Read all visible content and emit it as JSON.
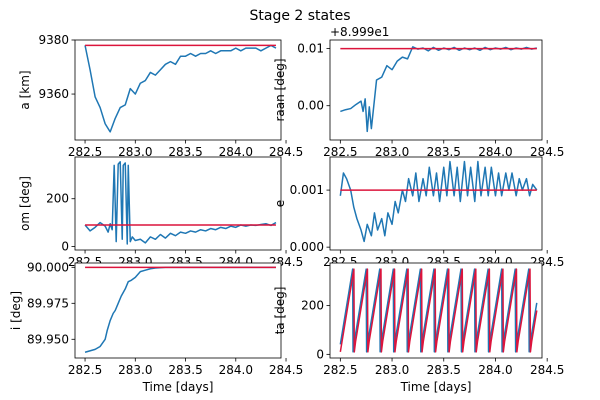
{
  "figure": {
    "title": "Stage 2 states"
  },
  "colors": {
    "simulated": "#1f77b4",
    "target": "#dc143c"
  },
  "chart_data": [
    {
      "type": "line",
      "id": "a",
      "ylabel": "a [km]",
      "xlabel": "",
      "xlim": [
        282.4,
        284.45
      ],
      "ylim": [
        9343,
        9380
      ],
      "xticks": [
        282.5,
        283.0,
        283.5,
        284.0,
        284.5
      ],
      "xtick_labels": [
        "282.5",
        "283.0",
        "283.5",
        "284.0",
        "284.5"
      ],
      "yticks": [
        9360,
        9380
      ],
      "ytick_labels": [
        "9360",
        "9380"
      ],
      "offset_text": "",
      "series": [
        {
          "role": "simulated",
          "x": [
            282.5,
            282.55,
            282.6,
            282.65,
            282.7,
            282.75,
            282.8,
            282.85,
            282.9,
            282.95,
            283.0,
            283.05,
            283.1,
            283.15,
            283.2,
            283.25,
            283.3,
            283.35,
            283.4,
            283.45,
            283.5,
            283.55,
            283.6,
            283.65,
            283.7,
            283.75,
            283.8,
            283.85,
            283.9,
            283.95,
            284.0,
            284.05,
            284.1,
            284.15,
            284.2,
            284.25,
            284.3,
            284.35,
            284.4
          ],
          "y": [
            9378,
            9369,
            9359,
            9355,
            9349,
            9346,
            9351,
            9355,
            9356,
            9362,
            9360,
            9364,
            9365,
            9368,
            9367,
            9369,
            9371,
            9372,
            9371,
            9374,
            9374,
            9375,
            9374,
            9375,
            9375,
            9376,
            9375,
            9376,
            9376,
            9376,
            9377,
            9376,
            9377,
            9377,
            9377,
            9376,
            9377,
            9378,
            9377
          ]
        },
        {
          "role": "target",
          "x": [
            282.5,
            284.4
          ],
          "y": [
            9378,
            9378
          ]
        }
      ]
    },
    {
      "type": "line",
      "id": "raan",
      "ylabel": "raan [deg]",
      "xlabel": "",
      "xlim": [
        282.4,
        284.45
      ],
      "ylim": [
        -0.006,
        0.0115
      ],
      "xticks": [
        282.5,
        283.0,
        283.5,
        284.0,
        284.5
      ],
      "xtick_labels": [
        "282.5",
        "283.0",
        "283.5",
        "284.0",
        "284.5"
      ],
      "yticks": [
        0.0,
        0.01
      ],
      "ytick_labels": [
        "0.00",
        "0.01"
      ],
      "offset_text": "+8.999e1",
      "series": [
        {
          "role": "simulated",
          "x": [
            282.5,
            282.55,
            282.6,
            282.65,
            282.7,
            282.72,
            282.74,
            282.76,
            282.78,
            282.8,
            282.85,
            282.9,
            282.95,
            283.0,
            283.05,
            283.1,
            283.15,
            283.2,
            283.25,
            283.3,
            283.35,
            283.4,
            283.45,
            283.5,
            283.55,
            283.6,
            283.65,
            283.7,
            283.75,
            283.8,
            283.85,
            283.9,
            283.95,
            284.0,
            284.05,
            284.1,
            284.15,
            284.2,
            284.25,
            284.3,
            284.35,
            284.4
          ],
          "y": [
            -0.001,
            -0.0007,
            -0.0005,
            0.0002,
            0.0008,
            -0.001,
            0.0012,
            -0.0045,
            -0.0002,
            -0.004,
            0.0045,
            0.005,
            0.007,
            0.0063,
            0.0078,
            0.0085,
            0.0082,
            0.0103,
            0.0099,
            0.0101,
            0.0096,
            0.0102,
            0.0097,
            0.0101,
            0.0098,
            0.0102,
            0.0097,
            0.0101,
            0.0098,
            0.0101,
            0.0097,
            0.0102,
            0.0098,
            0.0101,
            0.0099,
            0.0102,
            0.0098,
            0.0101,
            0.0099,
            0.0102,
            0.0099,
            0.0101
          ]
        },
        {
          "role": "target",
          "x": [
            282.5,
            284.4
          ],
          "y": [
            0.01,
            0.01
          ]
        }
      ]
    },
    {
      "type": "line",
      "id": "om",
      "ylabel": "om [deg]",
      "xlabel": "",
      "xlim": [
        282.4,
        284.45
      ],
      "ylim": [
        -15,
        375
      ],
      "xticks": [
        282.5,
        283.0,
        283.5,
        284.0,
        284.5
      ],
      "xtick_labels": [
        "282.5",
        "283.0",
        "283.5",
        "284.0",
        "284.5"
      ],
      "yticks": [
        0,
        200
      ],
      "ytick_labels": [
        "0",
        "200"
      ],
      "offset_text": "",
      "series": [
        {
          "role": "simulated",
          "x": [
            282.5,
            282.55,
            282.6,
            282.65,
            282.7,
            282.73,
            282.75,
            282.77,
            282.79,
            282.81,
            282.83,
            282.85,
            282.87,
            282.88,
            282.9,
            282.92,
            282.93,
            282.95,
            282.97,
            283.0,
            283.05,
            283.1,
            283.15,
            283.2,
            283.25,
            283.3,
            283.35,
            283.4,
            283.45,
            283.5,
            283.55,
            283.6,
            283.65,
            283.7,
            283.75,
            283.8,
            283.85,
            283.9,
            283.95,
            284.0,
            284.05,
            284.1,
            284.15,
            284.2,
            284.25,
            284.3,
            284.35,
            284.4
          ],
          "y": [
            90,
            65,
            80,
            100,
            85,
            60,
            95,
            70,
            340,
            20,
            345,
            355,
            30,
            340,
            350,
            10,
            340,
            20,
            40,
            25,
            30,
            15,
            40,
            30,
            50,
            35,
            55,
            45,
            60,
            55,
            65,
            60,
            70,
            65,
            75,
            70,
            80,
            75,
            85,
            80,
            90,
            85,
            90,
            88,
            92,
            95,
            88,
            100
          ]
        },
        {
          "role": "target",
          "x": [
            282.5,
            284.4
          ],
          "y": [
            90,
            90
          ]
        }
      ]
    },
    {
      "type": "line",
      "id": "e",
      "ylabel": "e",
      "xlabel": "",
      "xlim": [
        282.4,
        284.45
      ],
      "ylim": [
        -5e-05,
        0.00158
      ],
      "xticks": [
        282.5,
        283.0,
        283.5,
        284.0,
        284.5
      ],
      "xtick_labels": [
        "282.5",
        "283.0",
        "283.5",
        "284.0",
        "284.5"
      ],
      "yticks": [
        0.0,
        0.001
      ],
      "ytick_labels": [
        "0.000",
        "0.001"
      ],
      "offset_text": "",
      "series": [
        {
          "role": "simulated",
          "x": [
            282.5,
            282.53,
            282.56,
            282.6,
            282.63,
            282.66,
            282.7,
            282.73,
            282.76,
            282.8,
            282.83,
            282.86,
            282.9,
            282.93,
            282.96,
            283.0,
            283.03,
            283.06,
            283.1,
            283.13,
            283.16,
            283.2,
            283.23,
            283.26,
            283.3,
            283.33,
            283.36,
            283.4,
            283.43,
            283.46,
            283.5,
            283.53,
            283.56,
            283.6,
            283.63,
            283.66,
            283.7,
            283.73,
            283.76,
            283.8,
            283.83,
            283.86,
            283.9,
            283.93,
            283.96,
            284.0,
            284.03,
            284.06,
            284.1,
            284.13,
            284.16,
            284.2,
            284.23,
            284.26,
            284.3,
            284.33,
            284.36,
            284.4
          ],
          "y": [
            0.0009,
            0.0013,
            0.0012,
            0.001,
            0.0007,
            0.0005,
            0.0003,
            0.0001,
            0.0004,
            0.0002,
            0.0006,
            0.0003,
            0.0005,
            0.0002,
            0.0006,
            0.0004,
            0.0008,
            0.0006,
            0.001,
            0.0008,
            0.0012,
            0.0009,
            0.0013,
            0.0008,
            0.0012,
            0.0009,
            0.0014,
            0.0009,
            0.0013,
            0.0008,
            0.0014,
            0.0009,
            0.0015,
            0.0009,
            0.0014,
            0.0008,
            0.0015,
            0.0009,
            0.0014,
            0.0008,
            0.0015,
            0.0009,
            0.0014,
            0.0009,
            0.0014,
            0.0009,
            0.0013,
            0.0009,
            0.0013,
            0.001,
            0.0013,
            0.0009,
            0.0012,
            0.001,
            0.0012,
            0.0009,
            0.0011,
            0.001
          ]
        },
        {
          "role": "target",
          "x": [
            282.5,
            284.4
          ],
          "y": [
            0.001,
            0.001
          ]
        }
      ]
    },
    {
      "type": "line",
      "id": "i",
      "ylabel": "i [deg]",
      "xlabel": "Time [days]",
      "xlim": [
        282.4,
        284.45
      ],
      "ylim": [
        89.937,
        90.003
      ],
      "xticks": [
        282.5,
        283.0,
        283.5,
        284.0,
        284.5
      ],
      "xtick_labels": [
        "282.5",
        "283.0",
        "283.5",
        "284.0",
        "284.5"
      ],
      "yticks": [
        89.95,
        89.975,
        90.0
      ],
      "ytick_labels": [
        "89.950",
        "89.975",
        "90.000"
      ],
      "offset_text": "",
      "series": [
        {
          "role": "simulated",
          "x": [
            282.5,
            282.6,
            282.65,
            282.7,
            282.72,
            282.75,
            282.78,
            282.8,
            282.83,
            282.86,
            282.9,
            282.93,
            282.96,
            283.0,
            283.05,
            283.1,
            283.15,
            283.2,
            283.3,
            283.4,
            283.5,
            283.6,
            283.8,
            284.0,
            284.2,
            284.4
          ],
          "y": [
            89.941,
            89.943,
            89.945,
            89.95,
            89.956,
            89.963,
            89.968,
            89.97,
            89.975,
            89.98,
            89.985,
            89.99,
            89.991,
            89.993,
            89.997,
            89.998,
            89.999,
            89.9995,
            90.0,
            90.0,
            90.0,
            90.0,
            90.0,
            90.0,
            90.0,
            90.0
          ]
        },
        {
          "role": "target",
          "x": [
            282.5,
            284.4
          ],
          "y": [
            90.0,
            90.0
          ]
        }
      ]
    },
    {
      "type": "line",
      "id": "ta",
      "ylabel": "ta [deg]",
      "xlabel": "Time [days]",
      "xlim": [
        282.4,
        284.45
      ],
      "ylim": [
        -15,
        375
      ],
      "xticks": [
        282.5,
        283.0,
        283.5,
        284.0,
        284.5
      ],
      "xtick_labels": [
        "282.5",
        "283.0",
        "283.5",
        "284.0",
        "284.5"
      ],
      "yticks": [
        0,
        200
      ],
      "ytick_labels": [
        "0",
        "200"
      ],
      "offset_text": "",
      "sawtooth": {
        "x_start": 282.5,
        "x_end": 284.4,
        "period_days": 0.131,
        "y_min": 10,
        "y_max": 350
      },
      "series": [
        {
          "role": "simulated",
          "phase_days": 0.012
        },
        {
          "role": "target",
          "phase_days": 0.0
        }
      ]
    }
  ]
}
